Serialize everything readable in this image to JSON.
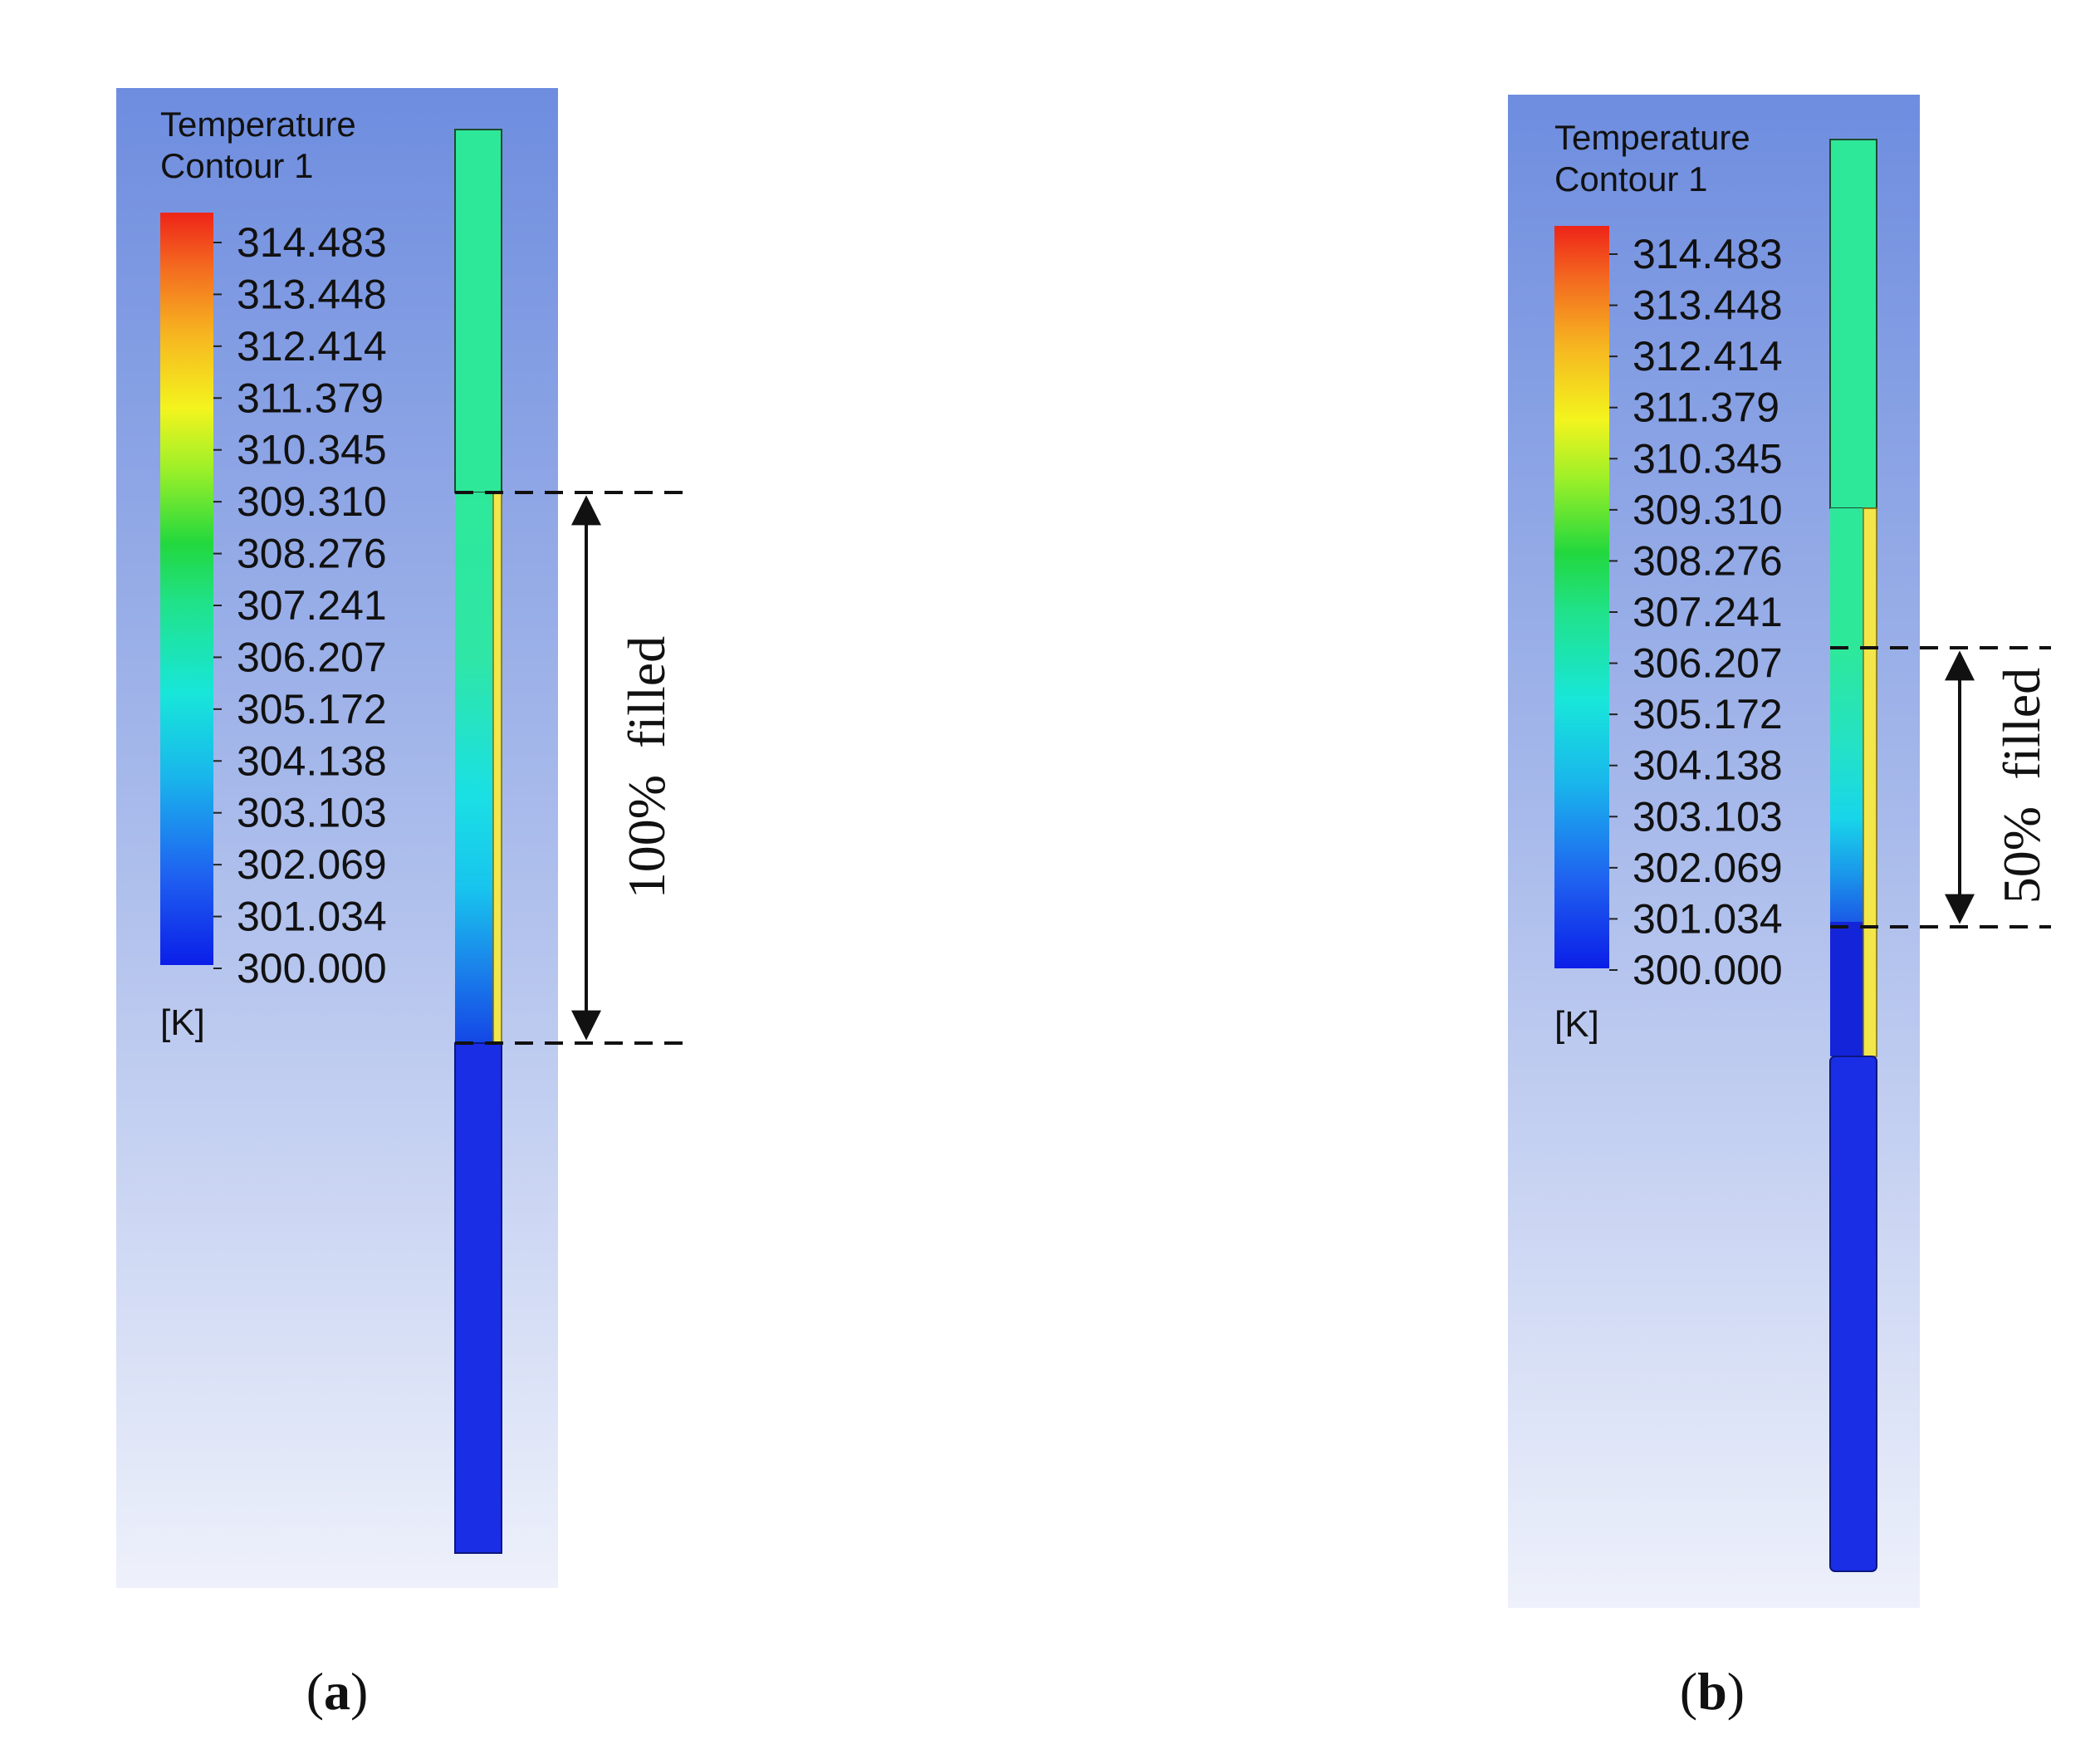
{
  "colors": {
    "bg_top": "#6f8ee0",
    "bg_bottom": "#eef1fb",
    "green_zone": "#2ee89a",
    "cold_zone": "#1a2ee6",
    "wall_yellow": "#f2e64a",
    "cyan_mid": "#19e0e6"
  },
  "panels": [
    {
      "id": "a",
      "legend": {
        "title_line1": "Temperature",
        "title_line2": "Contour 1",
        "unit": "[K]",
        "ticks": [
          "314.483",
          "313.448",
          "312.414",
          "311.379",
          "310.345",
          "309.310",
          "308.276",
          "307.241",
          "306.207",
          "305.172",
          "304.138",
          "303.103",
          "302.069",
          "301.034",
          "300.000"
        ]
      },
      "fill_label": "100%  filled",
      "caption_letter": "a"
    },
    {
      "id": "b",
      "legend": {
        "title_line1": "Temperature",
        "title_line2": "Contour 1",
        "unit": "[K]",
        "ticks": [
          "314.483",
          "313.448",
          "312.414",
          "311.379",
          "310.345",
          "309.310",
          "308.276",
          "307.241",
          "306.207",
          "305.172",
          "304.138",
          "303.103",
          "302.069",
          "301.034",
          "300.000"
        ]
      },
      "fill_label": "50%  filled",
      "caption_letter": "b"
    }
  ],
  "caption_open": "(",
  "caption_close": ")"
}
